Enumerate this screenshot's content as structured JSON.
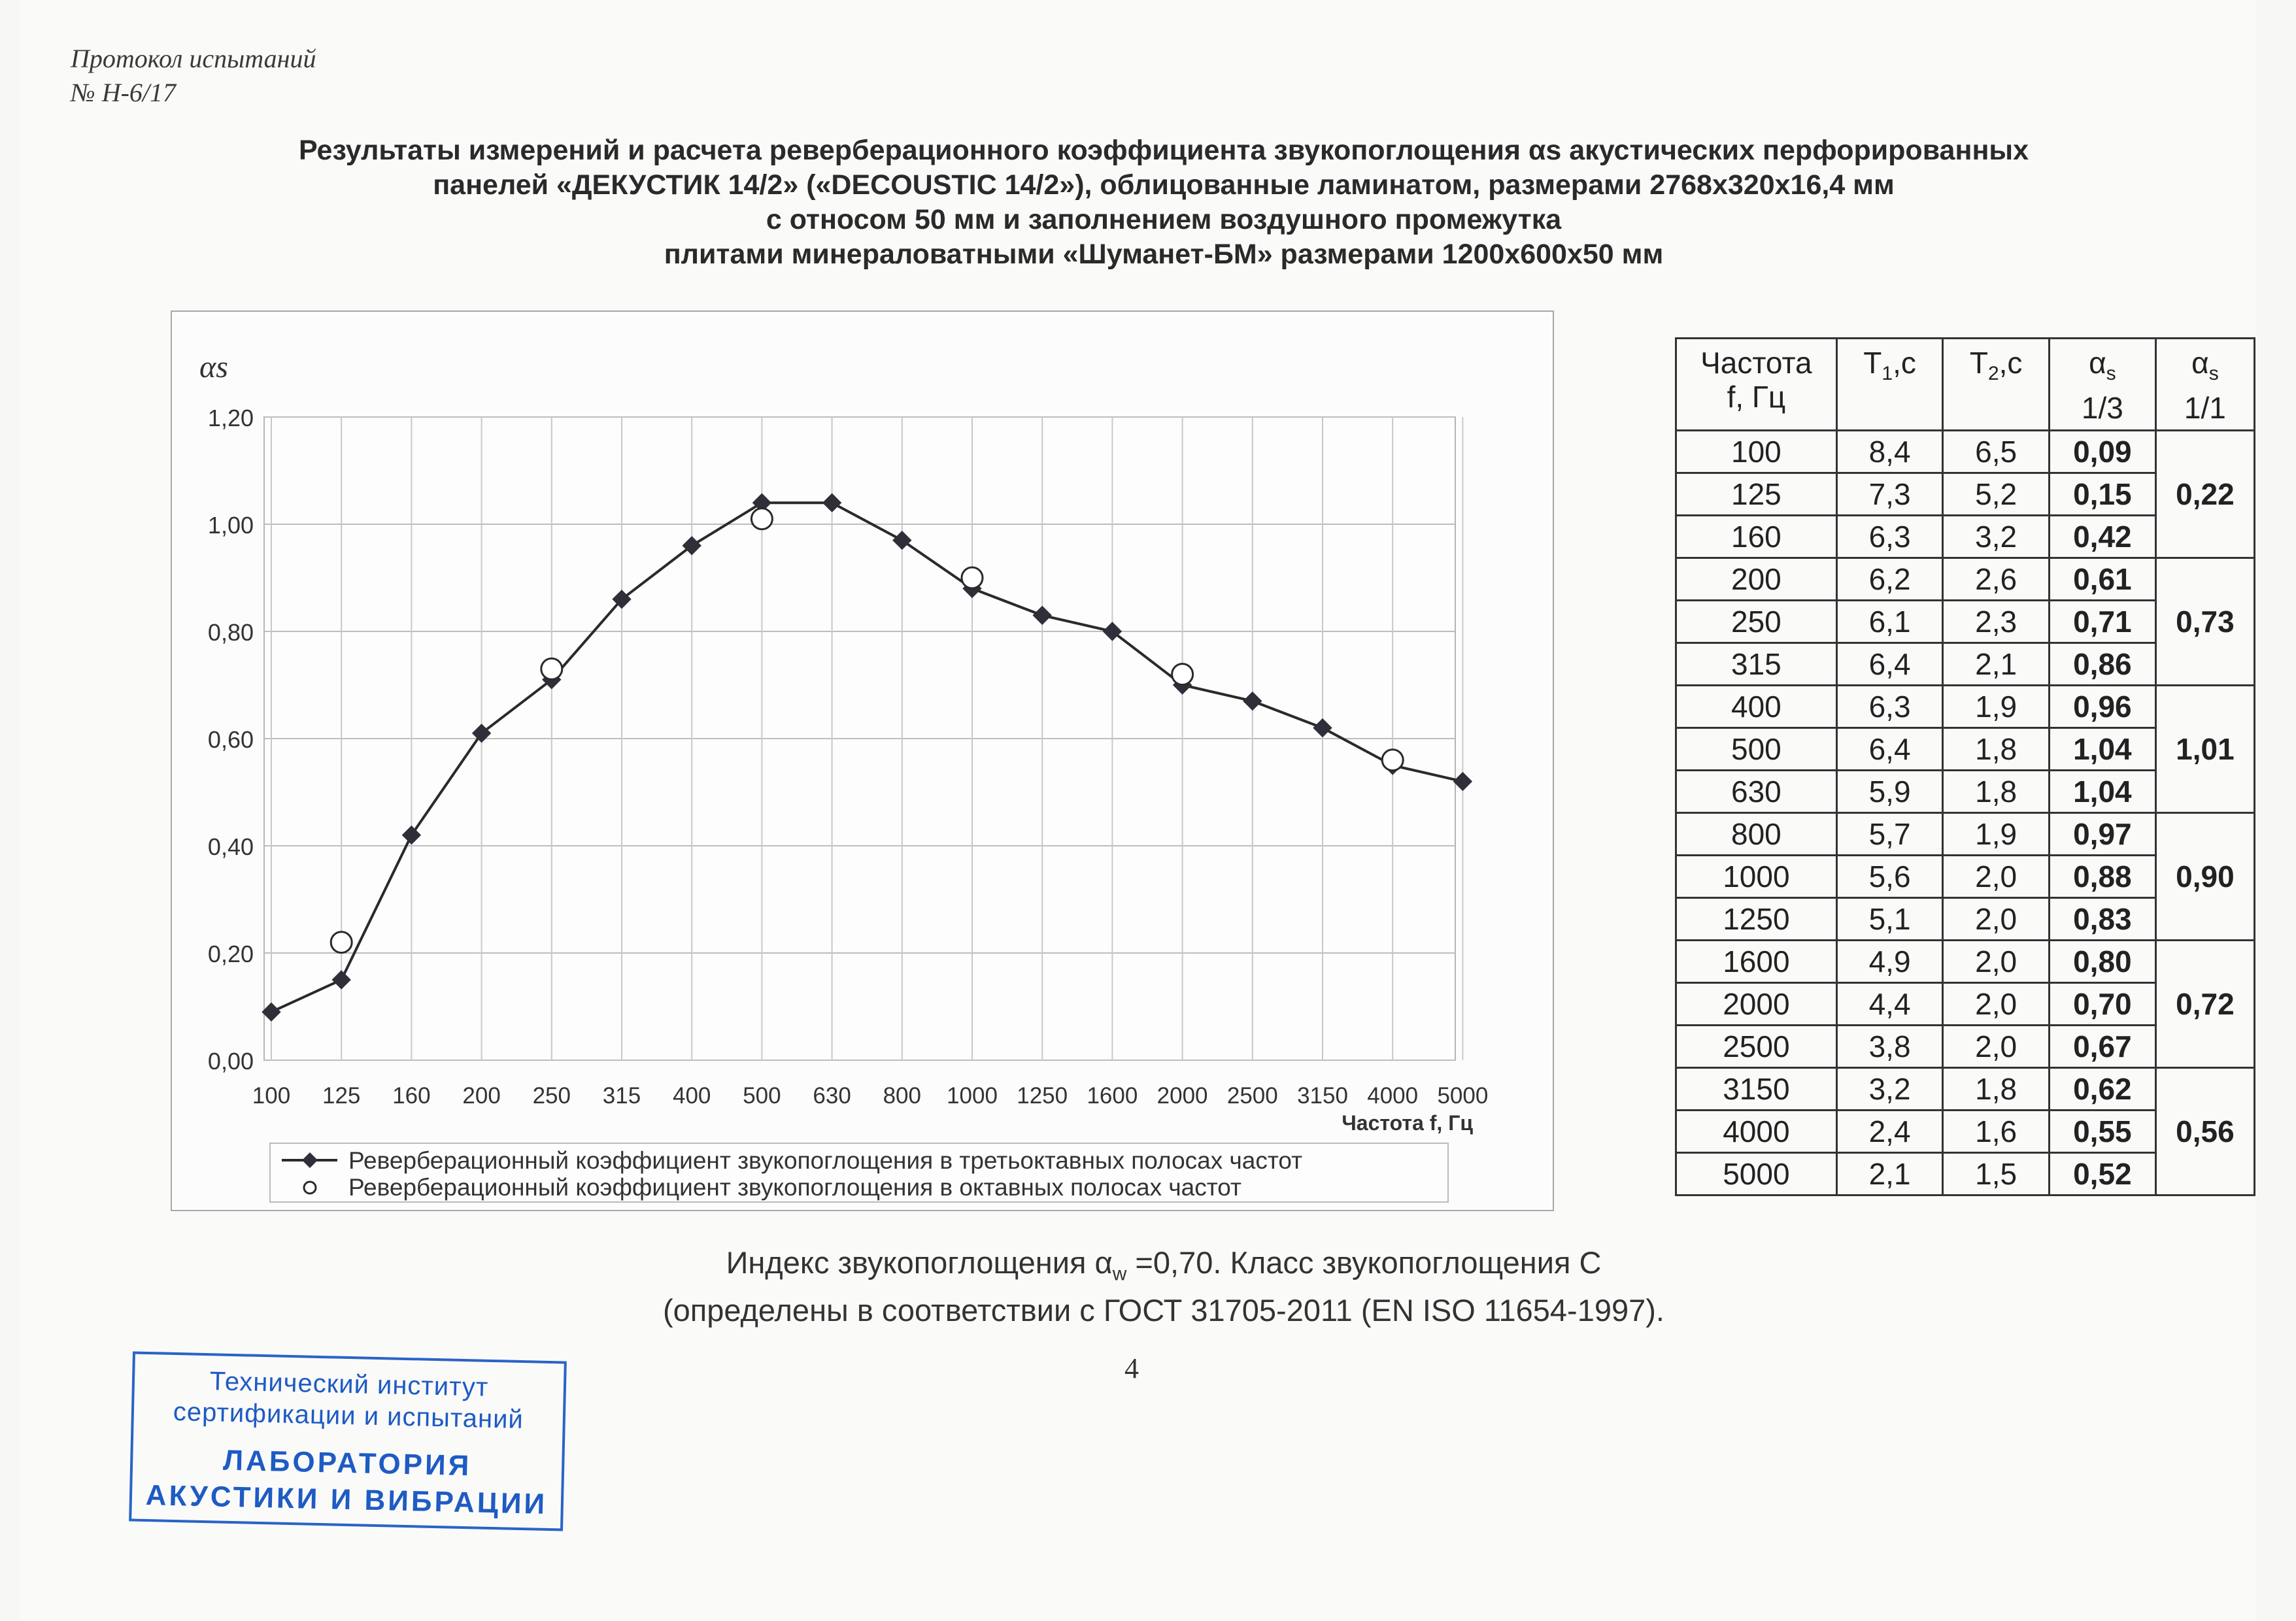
{
  "protocol": {
    "line1": "Протокол испытаний",
    "line2": "№ Н-6/17"
  },
  "title": {
    "line1": "Результаты измерений и расчета реверберационного коэффициента звукопоглощения  αs  акустических перфорированных",
    "line2": "панелей  «ДЕКУСТИК 14/2» («DECOUSTIC 14/2»), облицованные ламинатом, размерами 2768х320х16,4 мм",
    "line3": "с относом 50 мм и заполнением воздушного промежутка",
    "line4": "плитами минераловатными  «Шуманет-БМ» размерами 1200х600х50 мм"
  },
  "chart_data": {
    "type": "line",
    "categories": [
      "100",
      "125",
      "160",
      "200",
      "250",
      "315",
      "400",
      "500",
      "630",
      "800",
      "1000",
      "1250",
      "1600",
      "2000",
      "2500",
      "3150",
      "4000",
      "5000"
    ],
    "ylabel": "αs",
    "xlabel": "Частота f, Гц",
    "yticks": [
      "0,00",
      "0,20",
      "0,40",
      "0,60",
      "0,80",
      "1,00",
      "1,20"
    ],
    "ylim": [
      0,
      1.2
    ],
    "grid": true,
    "series": [
      {
        "name": "Реверберационный коэффициент звукопоглощения в третьоктавных полосах частот",
        "marker": "diamond",
        "values": [
          0.09,
          0.15,
          0.42,
          0.61,
          0.71,
          0.86,
          0.96,
          1.04,
          1.04,
          0.97,
          0.88,
          0.83,
          0.8,
          0.7,
          0.67,
          0.62,
          0.55,
          0.52
        ]
      },
      {
        "name": "Реверберационный коэффициент звукопоглощения в октавных полосах частот",
        "marker": "circle",
        "points": [
          {
            "x": "125",
            "y": 0.22
          },
          {
            "x": "250",
            "y": 0.73
          },
          {
            "x": "500",
            "y": 1.01
          },
          {
            "x": "1000",
            "y": 0.9
          },
          {
            "x": "2000",
            "y": 0.72
          },
          {
            "x": "4000",
            "y": 0.56
          }
        ]
      }
    ],
    "legend_position": "bottom"
  },
  "table": {
    "headers": {
      "freq": [
        "Частота",
        "f, Гц"
      ],
      "t1": "T1,c",
      "t2": "T2,c",
      "a13": [
        "αs",
        "1/3"
      ],
      "a11": [
        "αs",
        "1/1"
      ]
    },
    "rows": [
      {
        "f": "100",
        "t1": "8,4",
        "t2": "6,5",
        "a13": "0,09"
      },
      {
        "f": "125",
        "t1": "7,3",
        "t2": "5,2",
        "a13": "0,15"
      },
      {
        "f": "160",
        "t1": "6,3",
        "t2": "3,2",
        "a13": "0,42"
      },
      {
        "f": "200",
        "t1": "6,2",
        "t2": "2,6",
        "a13": "0,61"
      },
      {
        "f": "250",
        "t1": "6,1",
        "t2": "2,3",
        "a13": "0,71"
      },
      {
        "f": "315",
        "t1": "6,4",
        "t2": "2,1",
        "a13": "0,86"
      },
      {
        "f": "400",
        "t1": "6,3",
        "t2": "1,9",
        "a13": "0,96"
      },
      {
        "f": "500",
        "t1": "6,4",
        "t2": "1,8",
        "a13": "1,04"
      },
      {
        "f": "630",
        "t1": "5,9",
        "t2": "1,8",
        "a13": "1,04"
      },
      {
        "f": "800",
        "t1": "5,7",
        "t2": "1,9",
        "a13": "0,97"
      },
      {
        "f": "1000",
        "t1": "5,6",
        "t2": "2,0",
        "a13": "0,88"
      },
      {
        "f": "1250",
        "t1": "5,1",
        "t2": "2,0",
        "a13": "0,83"
      },
      {
        "f": "1600",
        "t1": "4,9",
        "t2": "2,0",
        "a13": "0,80"
      },
      {
        "f": "2000",
        "t1": "4,4",
        "t2": "2,0",
        "a13": "0,70"
      },
      {
        "f": "2500",
        "t1": "3,8",
        "t2": "2,0",
        "a13": "0,67"
      },
      {
        "f": "3150",
        "t1": "3,2",
        "t2": "1,8",
        "a13": "0,62"
      },
      {
        "f": "4000",
        "t1": "2,4",
        "t2": "1,6",
        "a13": "0,55"
      },
      {
        "f": "5000",
        "t1": "2,1",
        "t2": "1,5",
        "a13": "0,52"
      }
    ],
    "octave": [
      "0,22",
      "0,73",
      "1,01",
      "0,90",
      "0,72",
      "0,56"
    ]
  },
  "footer": {
    "line1_a": "Индекс звукопоглощения α",
    "line1_sub": "w",
    "line1_b": " =0,70. Класс звукопоглощения  С",
    "line2": "(определены в соответствии с ГОСТ 31705-2011 (EN ISO 11654-1997)."
  },
  "page_number": "4",
  "stamp": {
    "line1": "Технический институт",
    "line2": "сертификации и испытаний",
    "line3": "ЛАБОРАТОРИЯ",
    "line4": "АКУСТИКИ И ВИБРАЦИИ",
    "color": "#1e5bc4"
  }
}
